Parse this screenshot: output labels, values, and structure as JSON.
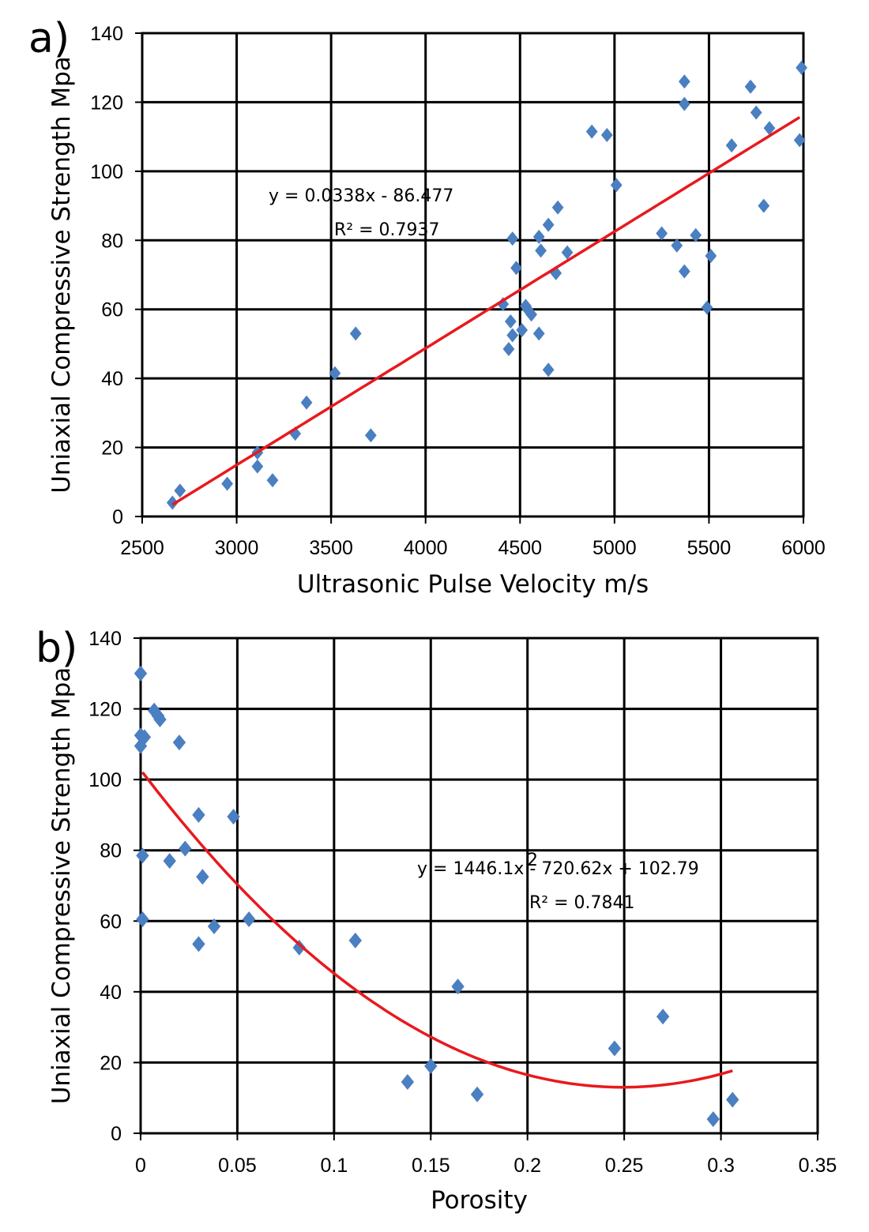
{
  "chart_data": [
    {
      "type": "scatter",
      "panel_label": "a)",
      "xlabel": "Ultrasonic Pulse Velocity m/s",
      "ylabel": "Uniaxial Compressive Strength Mpa",
      "xlim": [
        2500,
        6000
      ],
      "ylim": [
        0,
        140
      ],
      "xticks": [
        2500,
        3000,
        3500,
        4000,
        4500,
        5000,
        5500,
        6000
      ],
      "yticks": [
        0,
        20,
        40,
        60,
        80,
        100,
        120,
        140
      ],
      "grid": true,
      "marker_color": "#4a7fc1",
      "fit_color": "#e8191e",
      "trendline": {
        "kind": "linear",
        "slope": 0.0338,
        "intercept": -86.477,
        "x_range": [
          2660,
          5980
        ]
      },
      "equation": "y = 0.0338x  - 86.477",
      "r2": "R² = 0.7937",
      "points": [
        {
          "x": 2660,
          "y": 4
        },
        {
          "x": 2700,
          "y": 7.5
        },
        {
          "x": 2950,
          "y": 9.5
        },
        {
          "x": 3110,
          "y": 18.5
        },
        {
          "x": 3110,
          "y": 14.5
        },
        {
          "x": 3190,
          "y": 10.5
        },
        {
          "x": 3310,
          "y": 24
        },
        {
          "x": 3370,
          "y": 33
        },
        {
          "x": 3520,
          "y": 41.5
        },
        {
          "x": 3630,
          "y": 53
        },
        {
          "x": 3710,
          "y": 23.5
        },
        {
          "x": 4410,
          "y": 61.5
        },
        {
          "x": 4440,
          "y": 48.5
        },
        {
          "x": 4450,
          "y": 56.5
        },
        {
          "x": 4460,
          "y": 52.5
        },
        {
          "x": 4460,
          "y": 80.5
        },
        {
          "x": 4480,
          "y": 72
        },
        {
          "x": 4510,
          "y": 54
        },
        {
          "x": 4530,
          "y": 61
        },
        {
          "x": 4540,
          "y": 60
        },
        {
          "x": 4560,
          "y": 58.5
        },
        {
          "x": 4600,
          "y": 53
        },
        {
          "x": 4600,
          "y": 81
        },
        {
          "x": 4610,
          "y": 77
        },
        {
          "x": 4650,
          "y": 84.5
        },
        {
          "x": 4650,
          "y": 42.5
        },
        {
          "x": 4690,
          "y": 70.5
        },
        {
          "x": 4700,
          "y": 89.5
        },
        {
          "x": 4750,
          "y": 76.5
        },
        {
          "x": 4880,
          "y": 111.5
        },
        {
          "x": 4960,
          "y": 110.5
        },
        {
          "x": 5010,
          "y": 96
        },
        {
          "x": 5250,
          "y": 82
        },
        {
          "x": 5330,
          "y": 78.5
        },
        {
          "x": 5370,
          "y": 126
        },
        {
          "x": 5370,
          "y": 119.5
        },
        {
          "x": 5370,
          "y": 71
        },
        {
          "x": 5430,
          "y": 81.5
        },
        {
          "x": 5490,
          "y": 60.5
        },
        {
          "x": 5510,
          "y": 75.5
        },
        {
          "x": 5620,
          "y": 107.5
        },
        {
          "x": 5720,
          "y": 124.5
        },
        {
          "x": 5750,
          "y": 117
        },
        {
          "x": 5790,
          "y": 90
        },
        {
          "x": 5820,
          "y": 112.5
        },
        {
          "x": 5980,
          "y": 109
        },
        {
          "x": 5990,
          "y": 130
        }
      ]
    },
    {
      "type": "scatter",
      "panel_label": "b)",
      "xlabel": "Porosity",
      "ylabel": "Uniaxial Compressive Strength Mpa",
      "xlim": [
        0,
        0.35
      ],
      "ylim": [
        0,
        140
      ],
      "xticks": [
        "0",
        "0.05",
        "0.1",
        "0.15",
        "0.2",
        "0.25",
        "0.3",
        "0.35"
      ],
      "yticks": [
        0,
        20,
        40,
        60,
        80,
        100,
        120,
        140
      ],
      "grid": true,
      "marker_color": "#4a7fc1",
      "fit_color": "#e8191e",
      "trendline": {
        "kind": "polynomial",
        "coefficients": [
          1446.1,
          -720.62,
          102.79
        ],
        "x_range": [
          0.001,
          0.306
        ]
      },
      "equation": "y = 1446.1x  - 720.62x + 102.79",
      "equation_exponent": "2",
      "r2": "R² = 0.7841",
      "points": [
        {
          "x": 0,
          "y": 130
        },
        {
          "x": 0,
          "y": 112.5
        },
        {
          "x": 0,
          "y": 109.5
        },
        {
          "x": 0.002,
          "y": 112
        },
        {
          "x": 0.007,
          "y": 119.5
        },
        {
          "x": 0.009,
          "y": 118
        },
        {
          "x": 0.01,
          "y": 117
        },
        {
          "x": 0.02,
          "y": 110.5
        },
        {
          "x": 0.001,
          "y": 78.5
        },
        {
          "x": 0.001,
          "y": 60.5
        },
        {
          "x": 0.015,
          "y": 77
        },
        {
          "x": 0.023,
          "y": 80.5
        },
        {
          "x": 0.03,
          "y": 90
        },
        {
          "x": 0.032,
          "y": 72.5
        },
        {
          "x": 0.03,
          "y": 53.5
        },
        {
          "x": 0.038,
          "y": 58.5
        },
        {
          "x": 0.048,
          "y": 89.5
        },
        {
          "x": 0.056,
          "y": 60.5
        },
        {
          "x": 0.082,
          "y": 52.5
        },
        {
          "x": 0.111,
          "y": 54.5
        },
        {
          "x": 0.138,
          "y": 14.5
        },
        {
          "x": 0.15,
          "y": 19
        },
        {
          "x": 0.164,
          "y": 41.5
        },
        {
          "x": 0.174,
          "y": 11
        },
        {
          "x": 0.245,
          "y": 24
        },
        {
          "x": 0.27,
          "y": 33
        },
        {
          "x": 0.296,
          "y": 4
        },
        {
          "x": 0.306,
          "y": 9.5
        }
      ]
    }
  ]
}
